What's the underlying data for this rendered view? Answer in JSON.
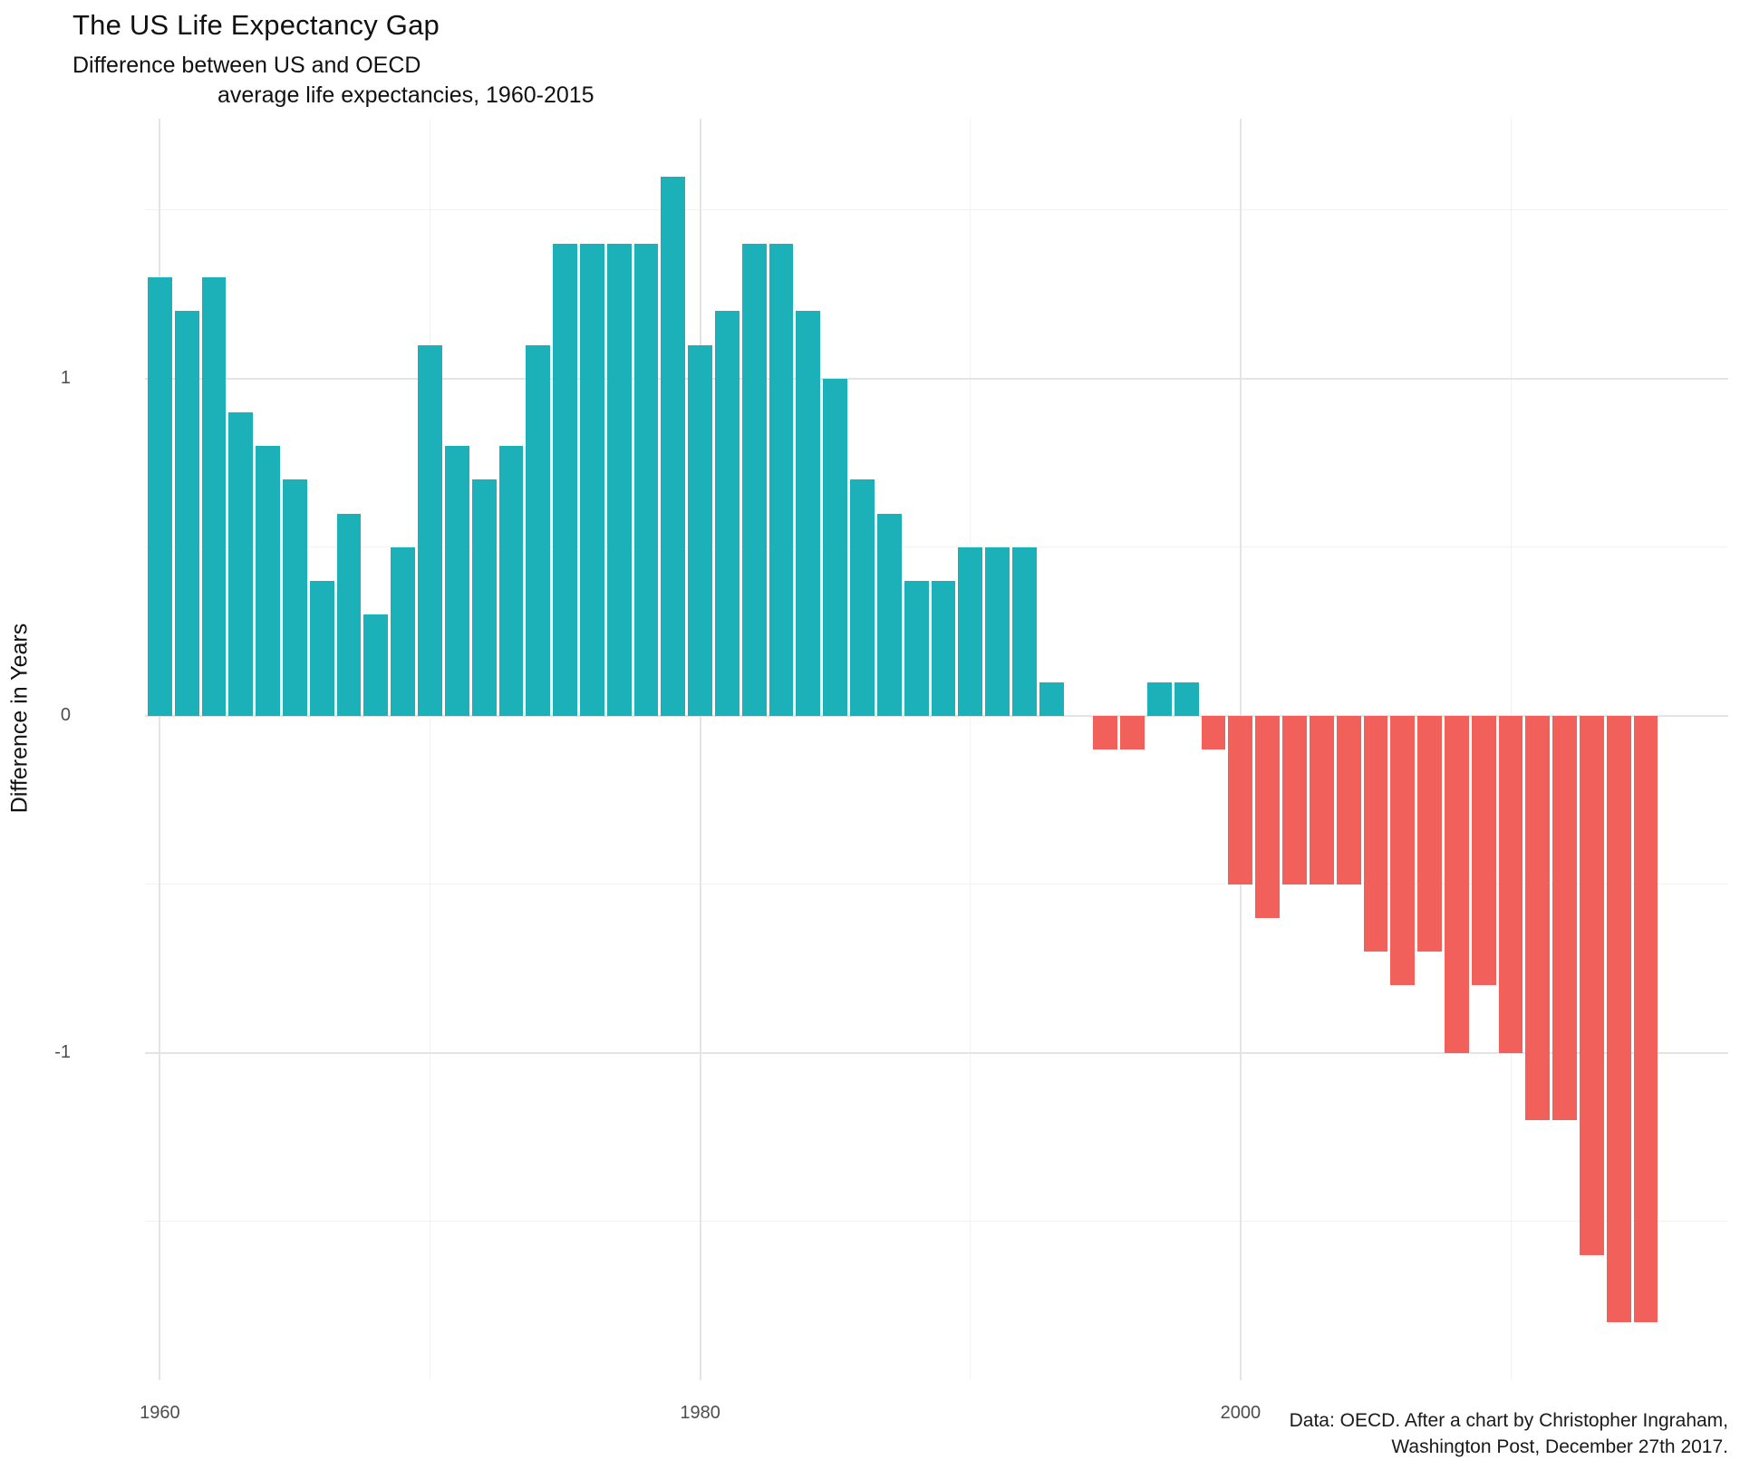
{
  "header": {
    "title": "The US Life Expectancy Gap",
    "subtitle_line1": "Difference between US and OECD",
    "subtitle_line2": "average life expectancies, 1960-2015"
  },
  "y_axis": {
    "title": "Difference in Years"
  },
  "caption": {
    "line1": "Data: OECD. After a chart by Christopher Ingraham,",
    "line2": "Washington Post, December 27th 2017."
  },
  "chart_data": {
    "type": "bar",
    "title": "The US Life Expectancy Gap",
    "subtitle": "Difference between US and OECD average life expectancies, 1960-2015",
    "xlabel": "",
    "ylabel": "Difference in Years",
    "x": [
      1960,
      1961,
      1962,
      1963,
      1964,
      1965,
      1966,
      1967,
      1968,
      1969,
      1970,
      1971,
      1972,
      1973,
      1974,
      1975,
      1976,
      1977,
      1978,
      1979,
      1980,
      1981,
      1982,
      1983,
      1984,
      1985,
      1986,
      1987,
      1988,
      1989,
      1990,
      1991,
      1992,
      1993,
      1994,
      1995,
      1996,
      1997,
      1998,
      1999,
      2000,
      2001,
      2002,
      2003,
      2004,
      2005,
      2006,
      2007,
      2008,
      2009,
      2010,
      2011,
      2012,
      2013,
      2014,
      2015
    ],
    "values": [
      1.3,
      1.2,
      1.3,
      0.9,
      0.8,
      0.7,
      0.4,
      0.6,
      0.3,
      0.5,
      1.1,
      0.8,
      0.7,
      0.8,
      1.1,
      1.4,
      1.4,
      1.4,
      1.4,
      1.6,
      1.1,
      1.2,
      1.4,
      1.4,
      1.2,
      1.0,
      0.7,
      0.6,
      0.4,
      0.4,
      0.5,
      0.5,
      0.5,
      0.1,
      0.0,
      -0.1,
      -0.1,
      0.1,
      0.1,
      -0.1,
      -0.5,
      -0.6,
      -0.5,
      -0.5,
      -0.5,
      -0.7,
      -0.8,
      -0.7,
      -1.0,
      -0.8,
      -1.0,
      -1.2,
      -1.2,
      -1.6,
      -1.8,
      -1.8
    ],
    "ylim": [
      -1.971,
      1.771
    ],
    "xlim": [
      1959.45,
      2018.05
    ],
    "yticks": [
      {
        "value": 1,
        "label": "1"
      },
      {
        "value": 0,
        "label": "0"
      },
      {
        "value": -1,
        "label": "-1"
      }
    ],
    "xticks": [
      {
        "value": 1960,
        "label": "1960"
      },
      {
        "value": 1980,
        "label": "1980"
      },
      {
        "value": 2000,
        "label": "2000"
      }
    ],
    "minor_yticks": [
      1.5,
      0.5,
      -0.5,
      -1.5
    ],
    "minor_xticks": [
      1970,
      1990,
      2010
    ],
    "bar_width_years": 0.9,
    "grid": "on",
    "legend": "none",
    "colors": {
      "positive": "#1CB1B8",
      "negative": "#F2605C"
    }
  }
}
